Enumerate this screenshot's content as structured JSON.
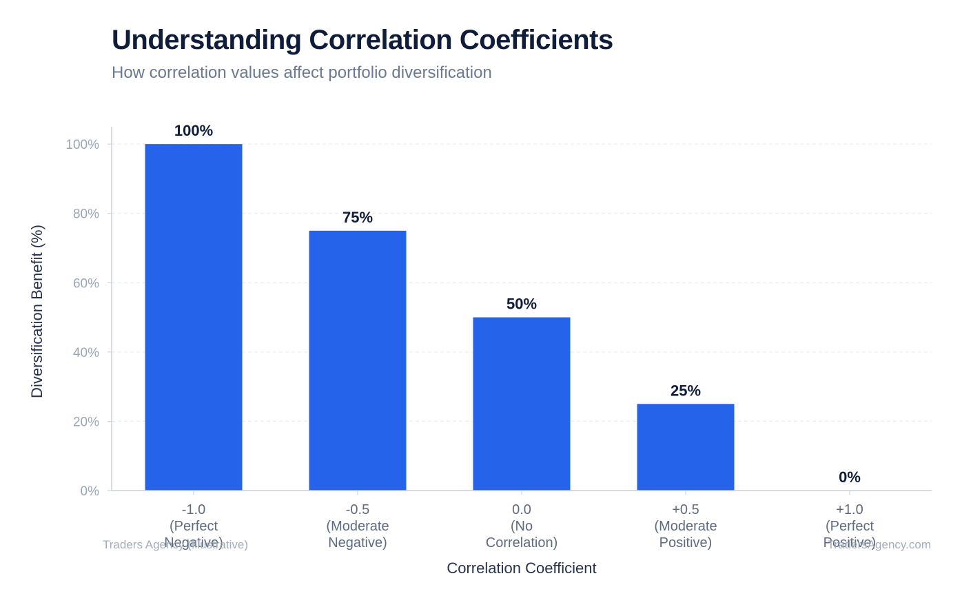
{
  "header": {
    "title": "Understanding Correlation Coefficients",
    "subtitle": "How correlation values affect portfolio diversification"
  },
  "footer": {
    "left_credit": "Traders Agency (Illustrative)",
    "right_credit": "TradersAgency.com"
  },
  "colors": {
    "bar": "#2563eb",
    "title": "#0f1d3a",
    "grid": "#e6e9ee",
    "axis": "#c9cfd8"
  },
  "chart_data": {
    "type": "bar",
    "categories": [
      [
        "-1.0",
        "(Perfect",
        "Negative)"
      ],
      [
        "-0.5",
        "(Moderate",
        "Negative)"
      ],
      [
        "0.0",
        "(No",
        "Correlation)"
      ],
      [
        "+0.5",
        "(Moderate",
        "Positive)"
      ],
      [
        "+1.0",
        "(Perfect",
        "Positive)"
      ]
    ],
    "values": [
      100,
      75,
      50,
      25,
      0
    ],
    "value_labels": [
      "100%",
      "75%",
      "50%",
      "25%",
      "0%"
    ],
    "xlabel": "Correlation Coefficient",
    "ylabel": "Diversification Benefit (%)",
    "ylim": [
      0,
      105
    ],
    "yticks": [
      0,
      20,
      40,
      60,
      80,
      100
    ],
    "ytick_labels": [
      "0%",
      "20%",
      "40%",
      "60%",
      "80%",
      "100%"
    ],
    "grid": true,
    "legend": "none"
  }
}
